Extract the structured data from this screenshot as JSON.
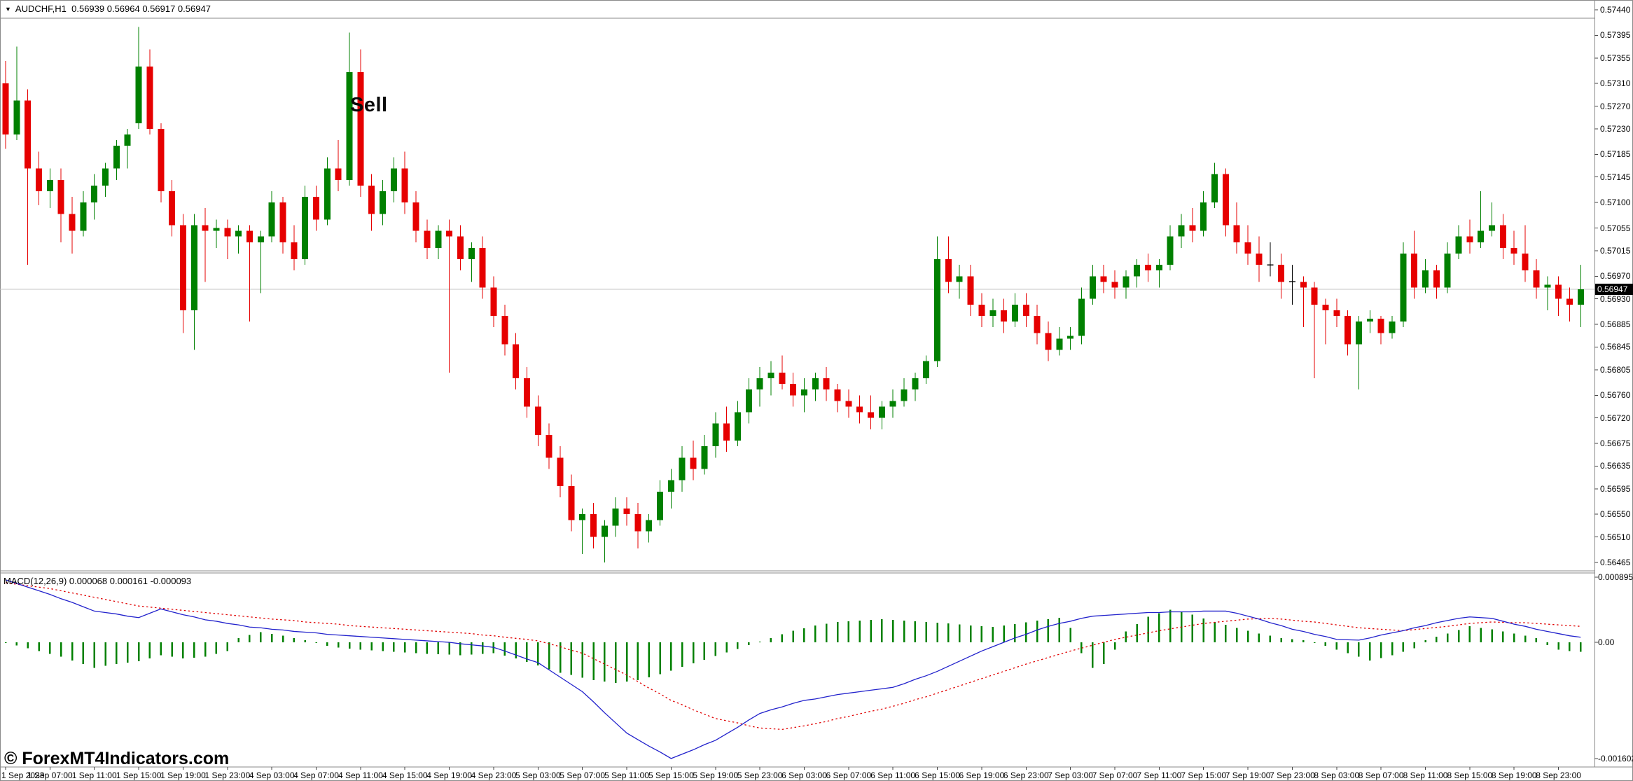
{
  "header": {
    "dropdown_icon": "▼",
    "symbol_period": "AUDCHF,H1",
    "ohlc": "0.56939 0.56964 0.56917 0.56947"
  },
  "annotations": {
    "sell": "Sell"
  },
  "watermark": "© ForexMT4Indicators.com",
  "indicator_label": "MACD(12,26,9) 0.000068 0.000161 -0.000093",
  "colors": {
    "bull": "#008000",
    "bear": "#e60000",
    "doji": "#000000",
    "macd_main": "#2222cc",
    "macd_signal": "#e00000",
    "macd_hist": "#008000",
    "current_line": "#c4c4c4",
    "frame": "#8a8a8a",
    "tick": "#444444",
    "tag_bg": "#000000",
    "tag_text": "#ffffff"
  },
  "price_axis": {
    "labels": [
      "0.57440",
      "0.57395",
      "0.57355",
      "0.57310",
      "0.57270",
      "0.57230",
      "0.57185",
      "0.57145",
      "0.57100",
      "0.57055",
      "0.57015",
      "0.56970",
      "0.56930",
      "0.56885",
      "0.56845",
      "0.56805",
      "0.56760",
      "0.56720",
      "0.56675",
      "0.56635",
      "0.56595",
      "0.56550",
      "0.56510",
      "0.56465"
    ],
    "current": "0.56947"
  },
  "macd_axis": {
    "max": "0.000895",
    "zero": "0.00",
    "min": "-0.001602"
  },
  "time_axis": {
    "bar_step": 4,
    "labels": [
      "1 Sep 2023",
      "1 Sep 07:00",
      "1 Sep 11:00",
      "1 Sep 15:00",
      "1 Sep 19:00",
      "1 Sep 23:00",
      "4 Sep 03:00",
      "4 Sep 07:00",
      "4 Sep 11:00",
      "4 Sep 15:00",
      "4 Sep 19:00",
      "4 Sep 23:00",
      "5 Sep 03:00",
      "5 Sep 07:00",
      "5 Sep 11:00",
      "5 Sep 15:00",
      "5 Sep 19:00",
      "5 Sep 23:00",
      "6 Sep 03:00",
      "6 Sep 07:00",
      "6 Sep 11:00",
      "6 Sep 15:00",
      "6 Sep 19:00",
      "6 Sep 23:00",
      "7 Sep 03:00",
      "7 Sep 07:00",
      "7 Sep 11:00",
      "7 Sep 15:00",
      "7 Sep 19:00",
      "7 Sep 23:00",
      "8 Sep 03:00",
      "8 Sep 07:00",
      "8 Sep 11:00",
      "8 Sep 15:00",
      "8 Sep 19:00",
      "8 Sep 23:00"
    ]
  },
  "chart_data": {
    "type": "candlestick",
    "symbol": "AUDCHF",
    "timeframe": "H1",
    "title": "AUDCHF,H1 0.56939 0.56964 0.56917 0.56947",
    "price_range": {
      "top": 0.5744,
      "bottom": 0.56465
    },
    "current_price": 0.56947,
    "ohlc": [
      [
        0.5731,
        0.5735,
        0.57195,
        0.5722
      ],
      [
        0.5722,
        0.57375,
        0.5721,
        0.5728
      ],
      [
        0.5728,
        0.573,
        0.5699,
        0.5716
      ],
      [
        0.5716,
        0.5719,
        0.57095,
        0.5712
      ],
      [
        0.5712,
        0.5716,
        0.5709,
        0.5714
      ],
      [
        0.5714,
        0.5716,
        0.5703,
        0.5708
      ],
      [
        0.5708,
        0.5711,
        0.5701,
        0.5705
      ],
      [
        0.5705,
        0.5712,
        0.5704,
        0.571
      ],
      [
        0.571,
        0.5715,
        0.5707,
        0.5713
      ],
      [
        0.5713,
        0.5717,
        0.5711,
        0.5716
      ],
      [
        0.5716,
        0.5721,
        0.5714,
        0.572
      ],
      [
        0.572,
        0.5723,
        0.5716,
        0.5722
      ],
      [
        0.5724,
        0.5741,
        0.5723,
        0.5734
      ],
      [
        0.5734,
        0.5737,
        0.5722,
        0.5723
      ],
      [
        0.5723,
        0.5724,
        0.571,
        0.5712
      ],
      [
        0.5712,
        0.5714,
        0.5704,
        0.5706
      ],
      [
        0.5706,
        0.5708,
        0.5687,
        0.5691
      ],
      [
        0.5691,
        0.5708,
        0.5684,
        0.5706
      ],
      [
        0.5706,
        0.5709,
        0.5696,
        0.5705
      ],
      [
        0.5705,
        0.5707,
        0.5702,
        0.57055
      ],
      [
        0.57055,
        0.5707,
        0.57,
        0.5704
      ],
      [
        0.5704,
        0.5706,
        0.5701,
        0.5705
      ],
      [
        0.5705,
        0.5706,
        0.5689,
        0.5703
      ],
      [
        0.5703,
        0.5705,
        0.5694,
        0.5704
      ],
      [
        0.5704,
        0.5712,
        0.5703,
        0.571
      ],
      [
        0.571,
        0.5711,
        0.5701,
        0.5703
      ],
      [
        0.5703,
        0.5706,
        0.5698,
        0.57
      ],
      [
        0.57,
        0.5713,
        0.5699,
        0.5711
      ],
      [
        0.5711,
        0.5713,
        0.5705,
        0.5707
      ],
      [
        0.5707,
        0.5718,
        0.5706,
        0.5716
      ],
      [
        0.5716,
        0.5721,
        0.5712,
        0.5714
      ],
      [
        0.5714,
        0.574,
        0.5713,
        0.5733
      ],
      [
        0.5733,
        0.5737,
        0.5711,
        0.5713
      ],
      [
        0.5713,
        0.5715,
        0.5705,
        0.5708
      ],
      [
        0.5708,
        0.5714,
        0.5706,
        0.5712
      ],
      [
        0.5712,
        0.5718,
        0.571,
        0.5716
      ],
      [
        0.5716,
        0.5719,
        0.5708,
        0.571
      ],
      [
        0.571,
        0.5712,
        0.5703,
        0.5705
      ],
      [
        0.5705,
        0.5707,
        0.57,
        0.5702
      ],
      [
        0.5702,
        0.5706,
        0.57,
        0.5705
      ],
      [
        0.5705,
        0.5707,
        0.568,
        0.5704
      ],
      [
        0.5704,
        0.5706,
        0.5698,
        0.57
      ],
      [
        0.57,
        0.5703,
        0.5696,
        0.5702
      ],
      [
        0.5702,
        0.5704,
        0.5693,
        0.5695
      ],
      [
        0.5695,
        0.5697,
        0.5688,
        0.569
      ],
      [
        0.569,
        0.5692,
        0.5683,
        0.5685
      ],
      [
        0.5685,
        0.5687,
        0.5677,
        0.5679
      ],
      [
        0.5679,
        0.5681,
        0.5672,
        0.5674
      ],
      [
        0.5674,
        0.5676,
        0.5667,
        0.5669
      ],
      [
        0.5669,
        0.5671,
        0.5663,
        0.5665
      ],
      [
        0.5665,
        0.5667,
        0.5658,
        0.566
      ],
      [
        0.566,
        0.5662,
        0.5652,
        0.5654
      ],
      [
        0.5654,
        0.5656,
        0.5648,
        0.5655
      ],
      [
        0.5655,
        0.5657,
        0.5649,
        0.5651
      ],
      [
        0.5651,
        0.5654,
        0.56465,
        0.5653
      ],
      [
        0.5653,
        0.5658,
        0.5651,
        0.5656
      ],
      [
        0.5656,
        0.5658,
        0.5653,
        0.5655
      ],
      [
        0.5655,
        0.5657,
        0.5649,
        0.5652
      ],
      [
        0.5652,
        0.5655,
        0.565,
        0.5654
      ],
      [
        0.5654,
        0.5661,
        0.5653,
        0.5659
      ],
      [
        0.5659,
        0.5663,
        0.5656,
        0.5661
      ],
      [
        0.5661,
        0.5667,
        0.5659,
        0.5665
      ],
      [
        0.5665,
        0.5668,
        0.5661,
        0.5663
      ],
      [
        0.5663,
        0.5669,
        0.5662,
        0.5667
      ],
      [
        0.5667,
        0.5673,
        0.5665,
        0.5671
      ],
      [
        0.5671,
        0.5674,
        0.5666,
        0.5668
      ],
      [
        0.5668,
        0.5675,
        0.5667,
        0.5673
      ],
      [
        0.5673,
        0.5679,
        0.5671,
        0.5677
      ],
      [
        0.5677,
        0.5681,
        0.5674,
        0.5679
      ],
      [
        0.5679,
        0.5682,
        0.5676,
        0.568
      ],
      [
        0.568,
        0.5683,
        0.5677,
        0.5678
      ],
      [
        0.5678,
        0.568,
        0.5674,
        0.5676
      ],
      [
        0.5676,
        0.5679,
        0.5673,
        0.5677
      ],
      [
        0.5677,
        0.568,
        0.5675,
        0.5679
      ],
      [
        0.5679,
        0.5681,
        0.5675,
        0.5677
      ],
      [
        0.5677,
        0.5678,
        0.5673,
        0.5675
      ],
      [
        0.5675,
        0.5677,
        0.5672,
        0.5674
      ],
      [
        0.5674,
        0.5676,
        0.5671,
        0.5673
      ],
      [
        0.5673,
        0.5676,
        0.567,
        0.5672
      ],
      [
        0.5672,
        0.5675,
        0.567,
        0.5674
      ],
      [
        0.5674,
        0.5677,
        0.5672,
        0.5675
      ],
      [
        0.5675,
        0.5679,
        0.5674,
        0.5677
      ],
      [
        0.5677,
        0.568,
        0.5675,
        0.5679
      ],
      [
        0.5679,
        0.5683,
        0.5678,
        0.5682
      ],
      [
        0.5682,
        0.5704,
        0.5681,
        0.57
      ],
      [
        0.57,
        0.5704,
        0.5694,
        0.5696
      ],
      [
        0.5696,
        0.5699,
        0.5693,
        0.5697
      ],
      [
        0.5697,
        0.5699,
        0.569,
        0.5692
      ],
      [
        0.5692,
        0.5694,
        0.5688,
        0.569
      ],
      [
        0.569,
        0.5693,
        0.5688,
        0.5691
      ],
      [
        0.5691,
        0.5693,
        0.5687,
        0.5689
      ],
      [
        0.5689,
        0.5694,
        0.5688,
        0.5692
      ],
      [
        0.5692,
        0.5694,
        0.5688,
        0.569
      ],
      [
        0.569,
        0.5692,
        0.5685,
        0.5687
      ],
      [
        0.5687,
        0.5689,
        0.5682,
        0.5684
      ],
      [
        0.5684,
        0.5688,
        0.5683,
        0.5686
      ],
      [
        0.5686,
        0.5688,
        0.5684,
        0.56865
      ],
      [
        0.56865,
        0.5695,
        0.5685,
        0.5693
      ],
      [
        0.5693,
        0.5699,
        0.5692,
        0.5697
      ],
      [
        0.5697,
        0.5699,
        0.5694,
        0.5696
      ],
      [
        0.5696,
        0.5698,
        0.5693,
        0.5695
      ],
      [
        0.5695,
        0.5698,
        0.5693,
        0.5697
      ],
      [
        0.5697,
        0.57,
        0.5695,
        0.5699
      ],
      [
        0.5699,
        0.5701,
        0.5696,
        0.5698
      ],
      [
        0.5698,
        0.57,
        0.5695,
        0.5699
      ],
      [
        0.5699,
        0.5706,
        0.5698,
        0.5704
      ],
      [
        0.5704,
        0.5708,
        0.5702,
        0.5706
      ],
      [
        0.5706,
        0.5709,
        0.5703,
        0.5705
      ],
      [
        0.5705,
        0.5712,
        0.5704,
        0.571
      ],
      [
        0.571,
        0.5717,
        0.5709,
        0.5715
      ],
      [
        0.5715,
        0.5716,
        0.5704,
        0.5706
      ],
      [
        0.5706,
        0.571,
        0.5701,
        0.5703
      ],
      [
        0.5703,
        0.5706,
        0.5699,
        0.5701
      ],
      [
        0.5701,
        0.5704,
        0.5696,
        0.5699
      ],
      [
        0.5699,
        0.5703,
        0.5697,
        0.5699
      ],
      [
        0.5699,
        0.5701,
        0.5693,
        0.5696
      ],
      [
        0.5696,
        0.5699,
        0.5692,
        0.5696
      ],
      [
        0.5696,
        0.5697,
        0.5688,
        0.5695
      ],
      [
        0.5695,
        0.5696,
        0.5679,
        0.5692
      ],
      [
        0.5692,
        0.5693,
        0.5685,
        0.5691
      ],
      [
        0.5691,
        0.5693,
        0.5688,
        0.569
      ],
      [
        0.569,
        0.5691,
        0.5683,
        0.5685
      ],
      [
        0.5685,
        0.569,
        0.5677,
        0.5689
      ],
      [
        0.5689,
        0.5691,
        0.5687,
        0.56895
      ],
      [
        0.56895,
        0.569,
        0.5685,
        0.5687
      ],
      [
        0.5687,
        0.569,
        0.5686,
        0.5689
      ],
      [
        0.5689,
        0.5703,
        0.5688,
        0.5701
      ],
      [
        0.5701,
        0.5705,
        0.5693,
        0.5695
      ],
      [
        0.5695,
        0.57,
        0.5694,
        0.5698
      ],
      [
        0.5698,
        0.5699,
        0.5693,
        0.5695
      ],
      [
        0.5695,
        0.5703,
        0.5694,
        0.5701
      ],
      [
        0.5701,
        0.5706,
        0.57,
        0.5704
      ],
      [
        0.5704,
        0.5707,
        0.5701,
        0.5703
      ],
      [
        0.5703,
        0.5712,
        0.5702,
        0.5705
      ],
      [
        0.5705,
        0.571,
        0.5704,
        0.5706
      ],
      [
        0.5706,
        0.5708,
        0.57,
        0.5702
      ],
      [
        0.5702,
        0.5705,
        0.5699,
        0.5701
      ],
      [
        0.5701,
        0.5706,
        0.5696,
        0.5698
      ],
      [
        0.5698,
        0.57,
        0.5693,
        0.5695
      ],
      [
        0.5695,
        0.5697,
        0.5691,
        0.56955
      ],
      [
        0.56955,
        0.5697,
        0.569,
        0.5693
      ],
      [
        0.5693,
        0.5695,
        0.5689,
        0.5692
      ],
      [
        0.5692,
        0.5699,
        0.5688,
        0.56947
      ]
    ],
    "macd": {
      "type": "line+histogram",
      "params": "12,26,9",
      "values_now": [
        6.8e-05,
        0.000161,
        -9.3e-05
      ],
      "range": {
        "max": 0.000895,
        "min": -0.001602
      },
      "scale": 0.0001,
      "main": [
        8.6,
        8.1,
        7.6,
        7.1,
        6.6,
        6.0,
        5.5,
        4.9,
        4.3,
        4.1,
        3.9,
        3.6,
        3.4,
        4.0,
        4.6,
        4.2,
        3.8,
        3.5,
        3.1,
        2.9,
        2.6,
        2.4,
        2.1,
        2.0,
        1.8,
        1.7,
        1.5,
        1.4,
        1.3,
        1.1,
        1.0,
        0.9,
        0.8,
        0.7,
        0.6,
        0.5,
        0.4,
        0.3,
        0.2,
        0.1,
        0.0,
        -0.2,
        -0.35,
        -0.5,
        -0.7,
        -1.2,
        -1.75,
        -2.3,
        -2.8,
        -3.8,
        -4.8,
        -5.8,
        -6.8,
        -8.2,
        -9.7,
        -11.1,
        -12.5,
        -13.4,
        -14.3,
        -15.1,
        -16.0,
        -15.4,
        -14.8,
        -14.1,
        -13.5,
        -12.6,
        -11.7,
        -10.7,
        -9.8,
        -9.3,
        -8.9,
        -8.4,
        -8.0,
        -7.8,
        -7.5,
        -7.2,
        -7.0,
        -6.8,
        -6.6,
        -6.4,
        -6.2,
        -5.7,
        -5.1,
        -4.6,
        -4.0,
        -3.3,
        -2.6,
        -1.9,
        -1.2,
        -0.6,
        0.0,
        0.6,
        1.1,
        1.7,
        2.2,
        2.6,
        2.9,
        3.3,
        3.6,
        3.7,
        3.8,
        3.9,
        4.0,
        4.1,
        4.1,
        4.2,
        4.2,
        4.2,
        4.3,
        4.3,
        4.3,
        4.0,
        3.6,
        3.2,
        2.7,
        2.3,
        1.8,
        1.5,
        1.1,
        0.8,
        0.4,
        0.35,
        0.3,
        0.6,
        1.0,
        1.3,
        1.6,
        2.0,
        2.3,
        2.7,
        3.0,
        3.3,
        3.5,
        3.4,
        3.3,
        2.9,
        2.5,
        2.2,
        1.8,
        1.5,
        1.2,
        0.9,
        0.7
      ],
      "signal": [
        8.2,
        8.0,
        7.8,
        7.6,
        7.4,
        7.1,
        6.8,
        6.5,
        6.2,
        5.9,
        5.6,
        5.3,
        5.0,
        4.85,
        4.7,
        4.55,
        4.4,
        4.25,
        4.1,
        3.95,
        3.8,
        3.65,
        3.5,
        3.35,
        3.2,
        3.1,
        3.0,
        2.8,
        2.7,
        2.6,
        2.5,
        2.3,
        2.2,
        2.1,
        2.0,
        1.9,
        1.8,
        1.7,
        1.6,
        1.5,
        1.4,
        1.3,
        1.2,
        1.0,
        0.9,
        0.7,
        0.55,
        0.4,
        0.2,
        -0.2,
        -0.6,
        -1.1,
        -1.5,
        -2.25,
        -3.0,
        -3.75,
        -4.5,
        -5.4,
        -6.3,
        -7.1,
        -8.0,
        -8.6,
        -9.3,
        -9.9,
        -10.5,
        -10.8,
        -11.1,
        -11.5,
        -11.8,
        -11.9,
        -12.0,
        -11.75,
        -11.5,
        -11.2,
        -10.9,
        -10.5,
        -10.2,
        -9.85,
        -9.5,
        -9.2,
        -8.8,
        -8.4,
        -7.9,
        -7.5,
        -7.0,
        -6.5,
        -6.0,
        -5.5,
        -5.0,
        -4.5,
        -4.0,
        -3.5,
        -3.0,
        -2.55,
        -2.1,
        -1.65,
        -1.2,
        -0.8,
        -0.4,
        0.0,
        0.4,
        0.7,
        1.0,
        1.3,
        1.6,
        1.85,
        2.1,
        2.35,
        2.6,
        2.75,
        2.9,
        3.05,
        3.2,
        3.25,
        3.3,
        3.2,
        3.05,
        2.9,
        2.8,
        2.6,
        2.4,
        2.2,
        2.0,
        1.9,
        1.8,
        1.7,
        1.6,
        1.75,
        1.9,
        2.05,
        2.2,
        2.4,
        2.6,
        2.7,
        2.8,
        2.75,
        2.7,
        2.7,
        2.6,
        2.5,
        2.4,
        2.3,
        2.2
      ],
      "histogram": [
        -0.1,
        -0.45,
        -0.8,
        -1.2,
        -1.6,
        -2.0,
        -2.5,
        -3.0,
        -3.5,
        -3.25,
        -3.0,
        -2.8,
        -2.6,
        -2.2,
        -1.8,
        -2.0,
        -2.2,
        -2.1,
        -2.0,
        -1.6,
        -1.2,
        0.6,
        1.0,
        1.4,
        1.15,
        0.9,
        0.6,
        0.3,
        -0.1,
        -0.5,
        -0.7,
        -0.85,
        -1.0,
        -1.1,
        -1.2,
        -1.3,
        -1.4,
        -1.5,
        -1.6,
        -1.65,
        -1.7,
        -1.8,
        -1.7,
        -1.6,
        -1.5,
        -1.85,
        -2.2,
        -2.7,
        -3.2,
        -3.7,
        -4.2,
        -4.5,
        -4.85,
        -5.2,
        -5.4,
        -5.6,
        -5.4,
        -5.2,
        -4.8,
        -4.4,
        -3.9,
        -3.4,
        -2.9,
        -2.4,
        -1.9,
        -1.4,
        -0.9,
        -0.4,
        0.1,
        0.6,
        1.1,
        1.6,
        1.95,
        2.3,
        2.55,
        2.8,
        2.9,
        3.0,
        3.1,
        3.2,
        3.1,
        3.0,
        2.9,
        2.8,
        2.7,
        2.6,
        2.45,
        2.3,
        2.2,
        2.1,
        2.3,
        2.5,
        2.75,
        3.0,
        3.2,
        3.4,
        2.0,
        -1.5,
        -3.5,
        -3.0,
        -1.0,
        1.5,
        2.5,
        3.5,
        4.0,
        4.5,
        4.15,
        3.8,
        3.3,
        2.8,
        2.4,
        2.0,
        1.6,
        1.2,
        0.9,
        0.6,
        0.45,
        0.3,
        -0.1,
        -0.5,
        -1.0,
        -1.5,
        -2.0,
        -2.5,
        -2.15,
        -1.8,
        -1.3,
        -0.8,
        0.3,
        0.75,
        1.2,
        1.7,
        2.2,
        2.0,
        1.8,
        1.5,
        1.2,
        0.9,
        0.6,
        -0.4,
        -1.0,
        -1.2,
        -1.3
      ]
    }
  }
}
